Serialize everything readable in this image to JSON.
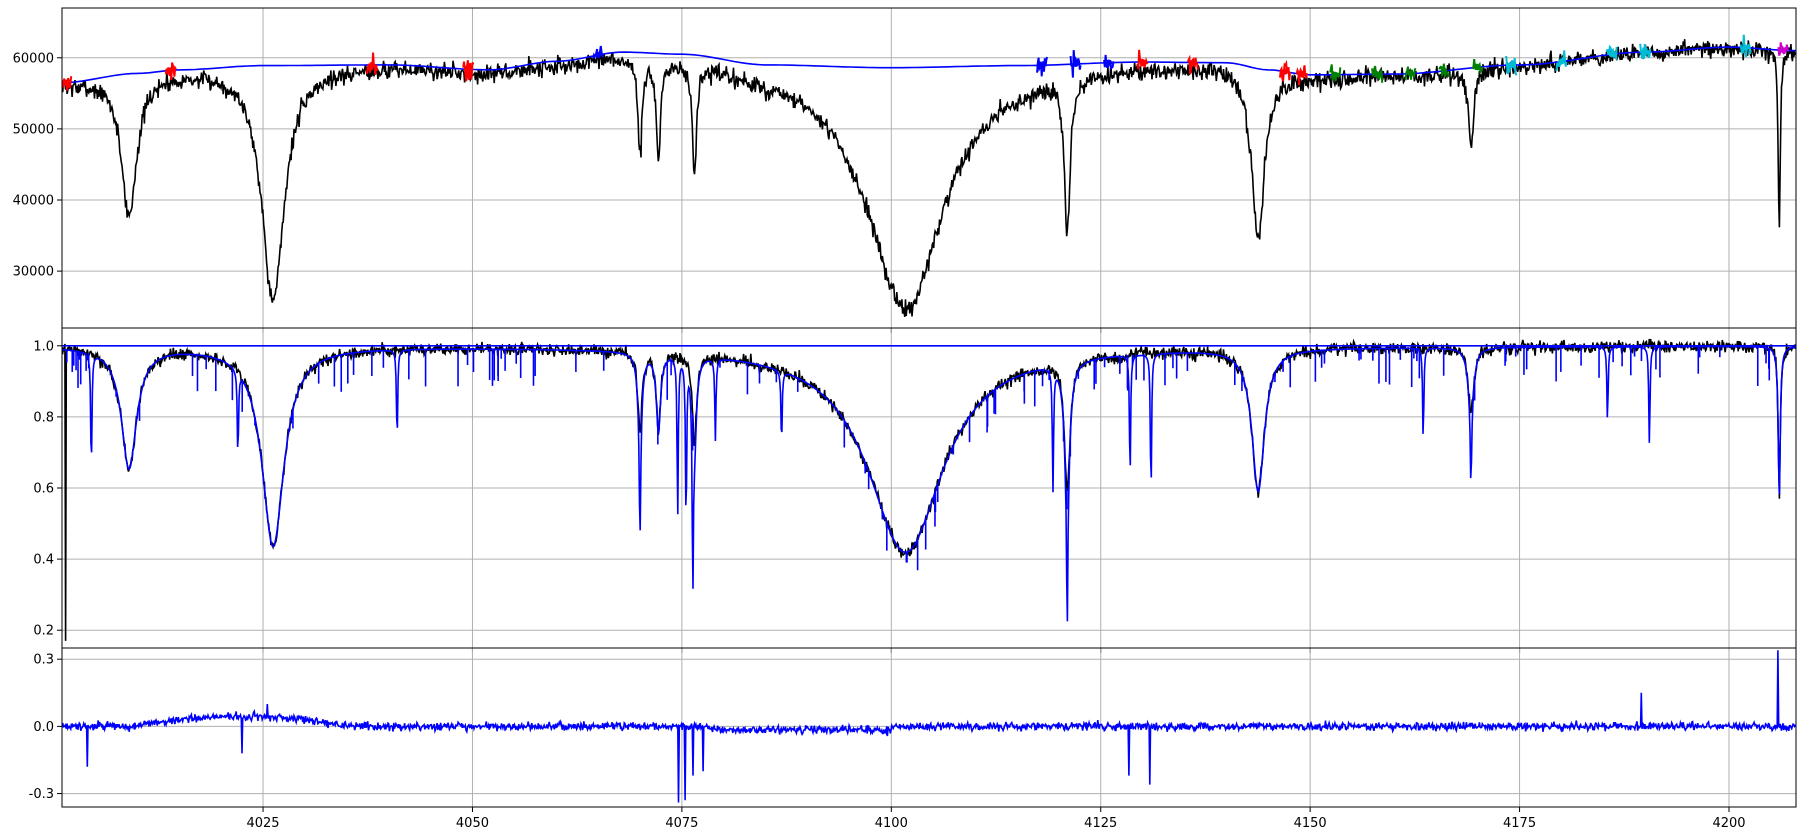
{
  "chart_data": [
    {
      "type": "line",
      "title": "",
      "xlabel": "",
      "ylabel": "",
      "xlim": [
        4001,
        4208
      ],
      "ylim": [
        22000,
        67000
      ],
      "xticks": [
        4025,
        4050,
        4075,
        4100,
        4125,
        4150,
        4175,
        4200
      ],
      "yticks": [
        30000,
        40000,
        50000,
        60000
      ],
      "ytick_labels": [
        "30000",
        "40000",
        "50000",
        "60000"
      ],
      "grid": true,
      "colors": {
        "spectrum": "#000000",
        "continuum": "#0000ff"
      },
      "continuum_fit": {
        "x": [
          4001,
          4010,
          4015,
          4025,
          4040,
          4052,
          4060,
          4068,
          4075,
          4085,
          4100,
          4115,
          4130,
          4140,
          4145,
          4150,
          4160,
          4175,
          4190,
          4200,
          4208
        ],
        "y": [
          56500,
          57800,
          58300,
          58900,
          59000,
          58300,
          59500,
          60800,
          60500,
          59000,
          58600,
          58900,
          59400,
          59300,
          58300,
          57600,
          57700,
          59000,
          60800,
          61500,
          61000
        ]
      },
      "absorption_lines": [
        {
          "center": 4009,
          "depth_fraction": 0.34,
          "width": 1.1
        },
        {
          "center": 4026.2,
          "depth_fraction": 0.56,
          "width": 1.6
        },
        {
          "center": 4101.7,
          "depth_fraction": 0.58,
          "width": 5.5
        },
        {
          "center": 4121,
          "depth_fraction": 0.36,
          "width": 0.4
        },
        {
          "center": 4143.8,
          "depth_fraction": 0.4,
          "width": 0.9
        },
        {
          "center": 4070,
          "depth_fraction": 0.22,
          "width": 0.3
        },
        {
          "center": 4072.2,
          "depth_fraction": 0.22,
          "width": 0.3
        },
        {
          "center": 4076.5,
          "depth_fraction": 0.25,
          "width": 0.3
        },
        {
          "center": 4169.2,
          "depth_fraction": 0.18,
          "width": 0.4
        },
        {
          "center": 4206,
          "depth_fraction": 0.42,
          "width": 0.15
        }
      ],
      "continuum_points": [
        {
          "x": 4001.5,
          "color": "#ff0000"
        },
        {
          "x": 4014,
          "color": "#ff0000"
        },
        {
          "x": 4038,
          "color": "#ff0000"
        },
        {
          "x": 4049.5,
          "color": "#ff0000"
        },
        {
          "x": 4065,
          "color": "#0000ff"
        },
        {
          "x": 4118,
          "color": "#0000ff"
        },
        {
          "x": 4122,
          "color": "#0000ff"
        },
        {
          "x": 4126,
          "color": "#0000ff"
        },
        {
          "x": 4130,
          "color": "#ff0000"
        },
        {
          "x": 4136,
          "color": "#ff0000"
        },
        {
          "x": 4147,
          "color": "#ff0000"
        },
        {
          "x": 4149,
          "color": "#ff0000"
        },
        {
          "x": 4153,
          "color": "#008000"
        },
        {
          "x": 4158,
          "color": "#008000"
        },
        {
          "x": 4162,
          "color": "#008000"
        },
        {
          "x": 4166,
          "color": "#008000"
        },
        {
          "x": 4170,
          "color": "#008000"
        },
        {
          "x": 4174,
          "color": "#00bcd4"
        },
        {
          "x": 4180,
          "color": "#00bcd4"
        },
        {
          "x": 4186,
          "color": "#00bcd4"
        },
        {
          "x": 4190,
          "color": "#00bcd4"
        },
        {
          "x": 4202,
          "color": "#00bcd4"
        },
        {
          "x": 4206.5,
          "color": "#cc00cc"
        }
      ]
    },
    {
      "type": "line",
      "title": "",
      "xlabel": "",
      "ylabel": "",
      "xlim": [
        4001,
        4208
      ],
      "ylim": [
        0.15,
        1.05
      ],
      "xticks": [
        4025,
        4050,
        4075,
        4100,
        4125,
        4150,
        4175,
        4200
      ],
      "yticks": [
        0.2,
        0.4,
        0.6,
        0.8,
        1.0
      ],
      "ytick_labels": [
        "0.2",
        "0.4",
        "0.6",
        "0.8",
        "1.0"
      ],
      "grid": true,
      "reference_line": 1.0,
      "colors": {
        "observed": "#000000",
        "model": "#0000ff"
      },
      "minima": [
        {
          "x": 4009,
          "observed": 0.66,
          "model": 0.65
        },
        {
          "x": 4026.2,
          "observed": 0.45,
          "model": 0.44
        },
        {
          "x": 4101.7,
          "observed": 0.43,
          "model": 0.42
        },
        {
          "x": 4143.8,
          "observed": 0.6,
          "model": 0.53
        }
      ],
      "model_only_lines": [
        {
          "x": 4004.5,
          "value": 0.67
        },
        {
          "x": 4022,
          "value": 0.76
        },
        {
          "x": 4041,
          "value": 0.74
        },
        {
          "x": 4070,
          "value": 0.69
        },
        {
          "x": 4074.5,
          "value": 0.55
        },
        {
          "x": 4075.5,
          "value": 0.54
        },
        {
          "x": 4076.3,
          "value": 0.49
        },
        {
          "x": 4079,
          "value": 0.77
        },
        {
          "x": 4086.9,
          "value": 0.79
        },
        {
          "x": 4119.3,
          "value": 0.66
        },
        {
          "x": 4121,
          "value": 0.6
        },
        {
          "x": 4128.5,
          "value": 0.65
        },
        {
          "x": 4131,
          "value": 0.6
        },
        {
          "x": 4163.5,
          "value": 0.74
        },
        {
          "x": 4169.2,
          "value": 0.79
        },
        {
          "x": 4185.5,
          "value": 0.79
        },
        {
          "x": 4190.5,
          "value": 0.72
        }
      ],
      "observed_only_lines": [
        {
          "x": 4001.4,
          "value": 0.17
        },
        {
          "x": 4206,
          "value": 0.57
        }
      ]
    },
    {
      "type": "line",
      "title": "",
      "xlabel": "",
      "ylabel": "",
      "xlim": [
        4001,
        4208
      ],
      "ylim": [
        -0.36,
        0.35
      ],
      "xticks": [
        4025,
        4050,
        4075,
        4100,
        4125,
        4150,
        4175,
        4200
      ],
      "xtick_labels": [
        "4025",
        "4050",
        "4075",
        "4100",
        "4125",
        "4150",
        "4175",
        "4200"
      ],
      "yticks": [
        -0.3,
        0.0,
        0.3
      ],
      "ytick_labels": [
        "-0.3",
        "0.0",
        "0.3"
      ],
      "grid": true,
      "colors": {
        "residual": "#0000ff"
      },
      "features": [
        {
          "x": 4004,
          "value": -0.18
        },
        {
          "x": 4022.5,
          "value": -0.12
        },
        {
          "x": 4025.5,
          "value": 0.1
        },
        {
          "x": 4074.6,
          "value": -0.34
        },
        {
          "x": 4075.4,
          "value": -0.33
        },
        {
          "x": 4076.3,
          "value": -0.22
        },
        {
          "x": 4077.5,
          "value": -0.2
        },
        {
          "x": 4128.4,
          "value": -0.22
        },
        {
          "x": 4130.9,
          "value": -0.26
        },
        {
          "x": 4189.5,
          "value": 0.15
        },
        {
          "x": 4205.8,
          "value": 0.34
        }
      ]
    }
  ]
}
